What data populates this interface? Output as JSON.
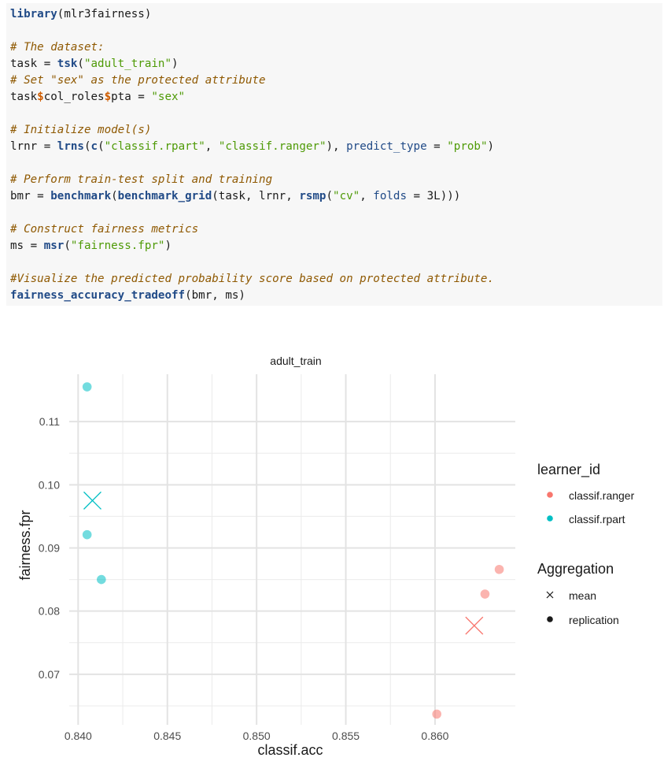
{
  "code": {
    "lines": [
      [
        {
          "t": "fn",
          "v": "library"
        },
        {
          "t": "plain",
          "v": "(mlr3fairness)"
        }
      ],
      [],
      [
        {
          "t": "cm",
          "v": "# The dataset:"
        }
      ],
      [
        {
          "t": "plain",
          "v": "task = "
        },
        {
          "t": "fn",
          "v": "tsk"
        },
        {
          "t": "plain",
          "v": "("
        },
        {
          "t": "str",
          "v": "\"adult_train\""
        },
        {
          "t": "plain",
          "v": ")"
        }
      ],
      [
        {
          "t": "cm",
          "v": "# Set \"sex\" as the protected attribute"
        }
      ],
      [
        {
          "t": "plain",
          "v": "task"
        },
        {
          "t": "op",
          "v": "$"
        },
        {
          "t": "plain",
          "v": "col_roles"
        },
        {
          "t": "op",
          "v": "$"
        },
        {
          "t": "plain",
          "v": "pta = "
        },
        {
          "t": "str",
          "v": "\"sex\""
        }
      ],
      [],
      [
        {
          "t": "cm",
          "v": "# Initialize model(s)"
        }
      ],
      [
        {
          "t": "plain",
          "v": "lrnr = "
        },
        {
          "t": "fn",
          "v": "lrns"
        },
        {
          "t": "plain",
          "v": "("
        },
        {
          "t": "fn",
          "v": "c"
        },
        {
          "t": "plain",
          "v": "("
        },
        {
          "t": "str",
          "v": "\"classif.rpart\""
        },
        {
          "t": "plain",
          "v": ", "
        },
        {
          "t": "str",
          "v": "\"classif.ranger\""
        },
        {
          "t": "plain",
          "v": "), "
        },
        {
          "t": "arg",
          "v": "predict_type"
        },
        {
          "t": "plain",
          "v": " = "
        },
        {
          "t": "str",
          "v": "\"prob\""
        },
        {
          "t": "plain",
          "v": ")"
        }
      ],
      [],
      [
        {
          "t": "cm",
          "v": "# Perform train-test split and training"
        }
      ],
      [
        {
          "t": "plain",
          "v": "bmr = "
        },
        {
          "t": "fn",
          "v": "benchmark"
        },
        {
          "t": "plain",
          "v": "("
        },
        {
          "t": "fn",
          "v": "benchmark_grid"
        },
        {
          "t": "plain",
          "v": "(task, lrnr, "
        },
        {
          "t": "fn",
          "v": "rsmp"
        },
        {
          "t": "plain",
          "v": "("
        },
        {
          "t": "str",
          "v": "\"cv\""
        },
        {
          "t": "plain",
          "v": ", "
        },
        {
          "t": "arg",
          "v": "folds"
        },
        {
          "t": "plain",
          "v": " = 3L)))"
        }
      ],
      [],
      [
        {
          "t": "cm",
          "v": "# Construct fairness metrics"
        }
      ],
      [
        {
          "t": "plain",
          "v": "ms = "
        },
        {
          "t": "fn",
          "v": "msr"
        },
        {
          "t": "plain",
          "v": "("
        },
        {
          "t": "str",
          "v": "\"fairness.fpr\""
        },
        {
          "t": "plain",
          "v": ")"
        }
      ],
      [],
      [
        {
          "t": "cm",
          "v": "#Visualize the predicted probability score based on protected attribute."
        }
      ],
      [
        {
          "t": "fn",
          "v": "fairness_accuracy_tradeoff"
        },
        {
          "t": "plain",
          "v": "(bmr, ms)"
        }
      ]
    ]
  },
  "chart_data": {
    "type": "scatter",
    "title": "adult_train",
    "xlabel": "classif.acc",
    "ylabel": "fairness.fpr",
    "xlim": [
      0.8395,
      0.8645
    ],
    "ylim": [
      0.062,
      0.1175
    ],
    "x_ticks": [
      0.84,
      0.845,
      0.85,
      0.855,
      0.86
    ],
    "x_tick_labels": [
      "0.840",
      "0.845",
      "0.850",
      "0.855",
      "0.860"
    ],
    "y_ticks": [
      0.07,
      0.08,
      0.09,
      0.1,
      0.11
    ],
    "y_tick_labels": [
      "0.07",
      "0.08",
      "0.09",
      "0.10",
      "0.11"
    ],
    "grid": true,
    "legend_position": "right",
    "series": [
      {
        "name": "classif.ranger",
        "color": "#F8766D",
        "replication": [
          {
            "x": 0.8601,
            "y": 0.0637
          },
          {
            "x": 0.8628,
            "y": 0.0827
          },
          {
            "x": 0.8636,
            "y": 0.0866
          }
        ],
        "mean": {
          "x": 0.8622,
          "y": 0.0777
        }
      },
      {
        "name": "classif.rpart",
        "color": "#00BFC4",
        "replication": [
          {
            "x": 0.8405,
            "y": 0.1155
          },
          {
            "x": 0.8405,
            "y": 0.0921
          },
          {
            "x": 0.8413,
            "y": 0.085
          }
        ],
        "mean": {
          "x": 0.8408,
          "y": 0.0975
        }
      }
    ],
    "legend": {
      "color_title": "learner_id",
      "shape_title": "Aggregation",
      "shape_items": [
        "mean",
        "replication"
      ]
    }
  }
}
